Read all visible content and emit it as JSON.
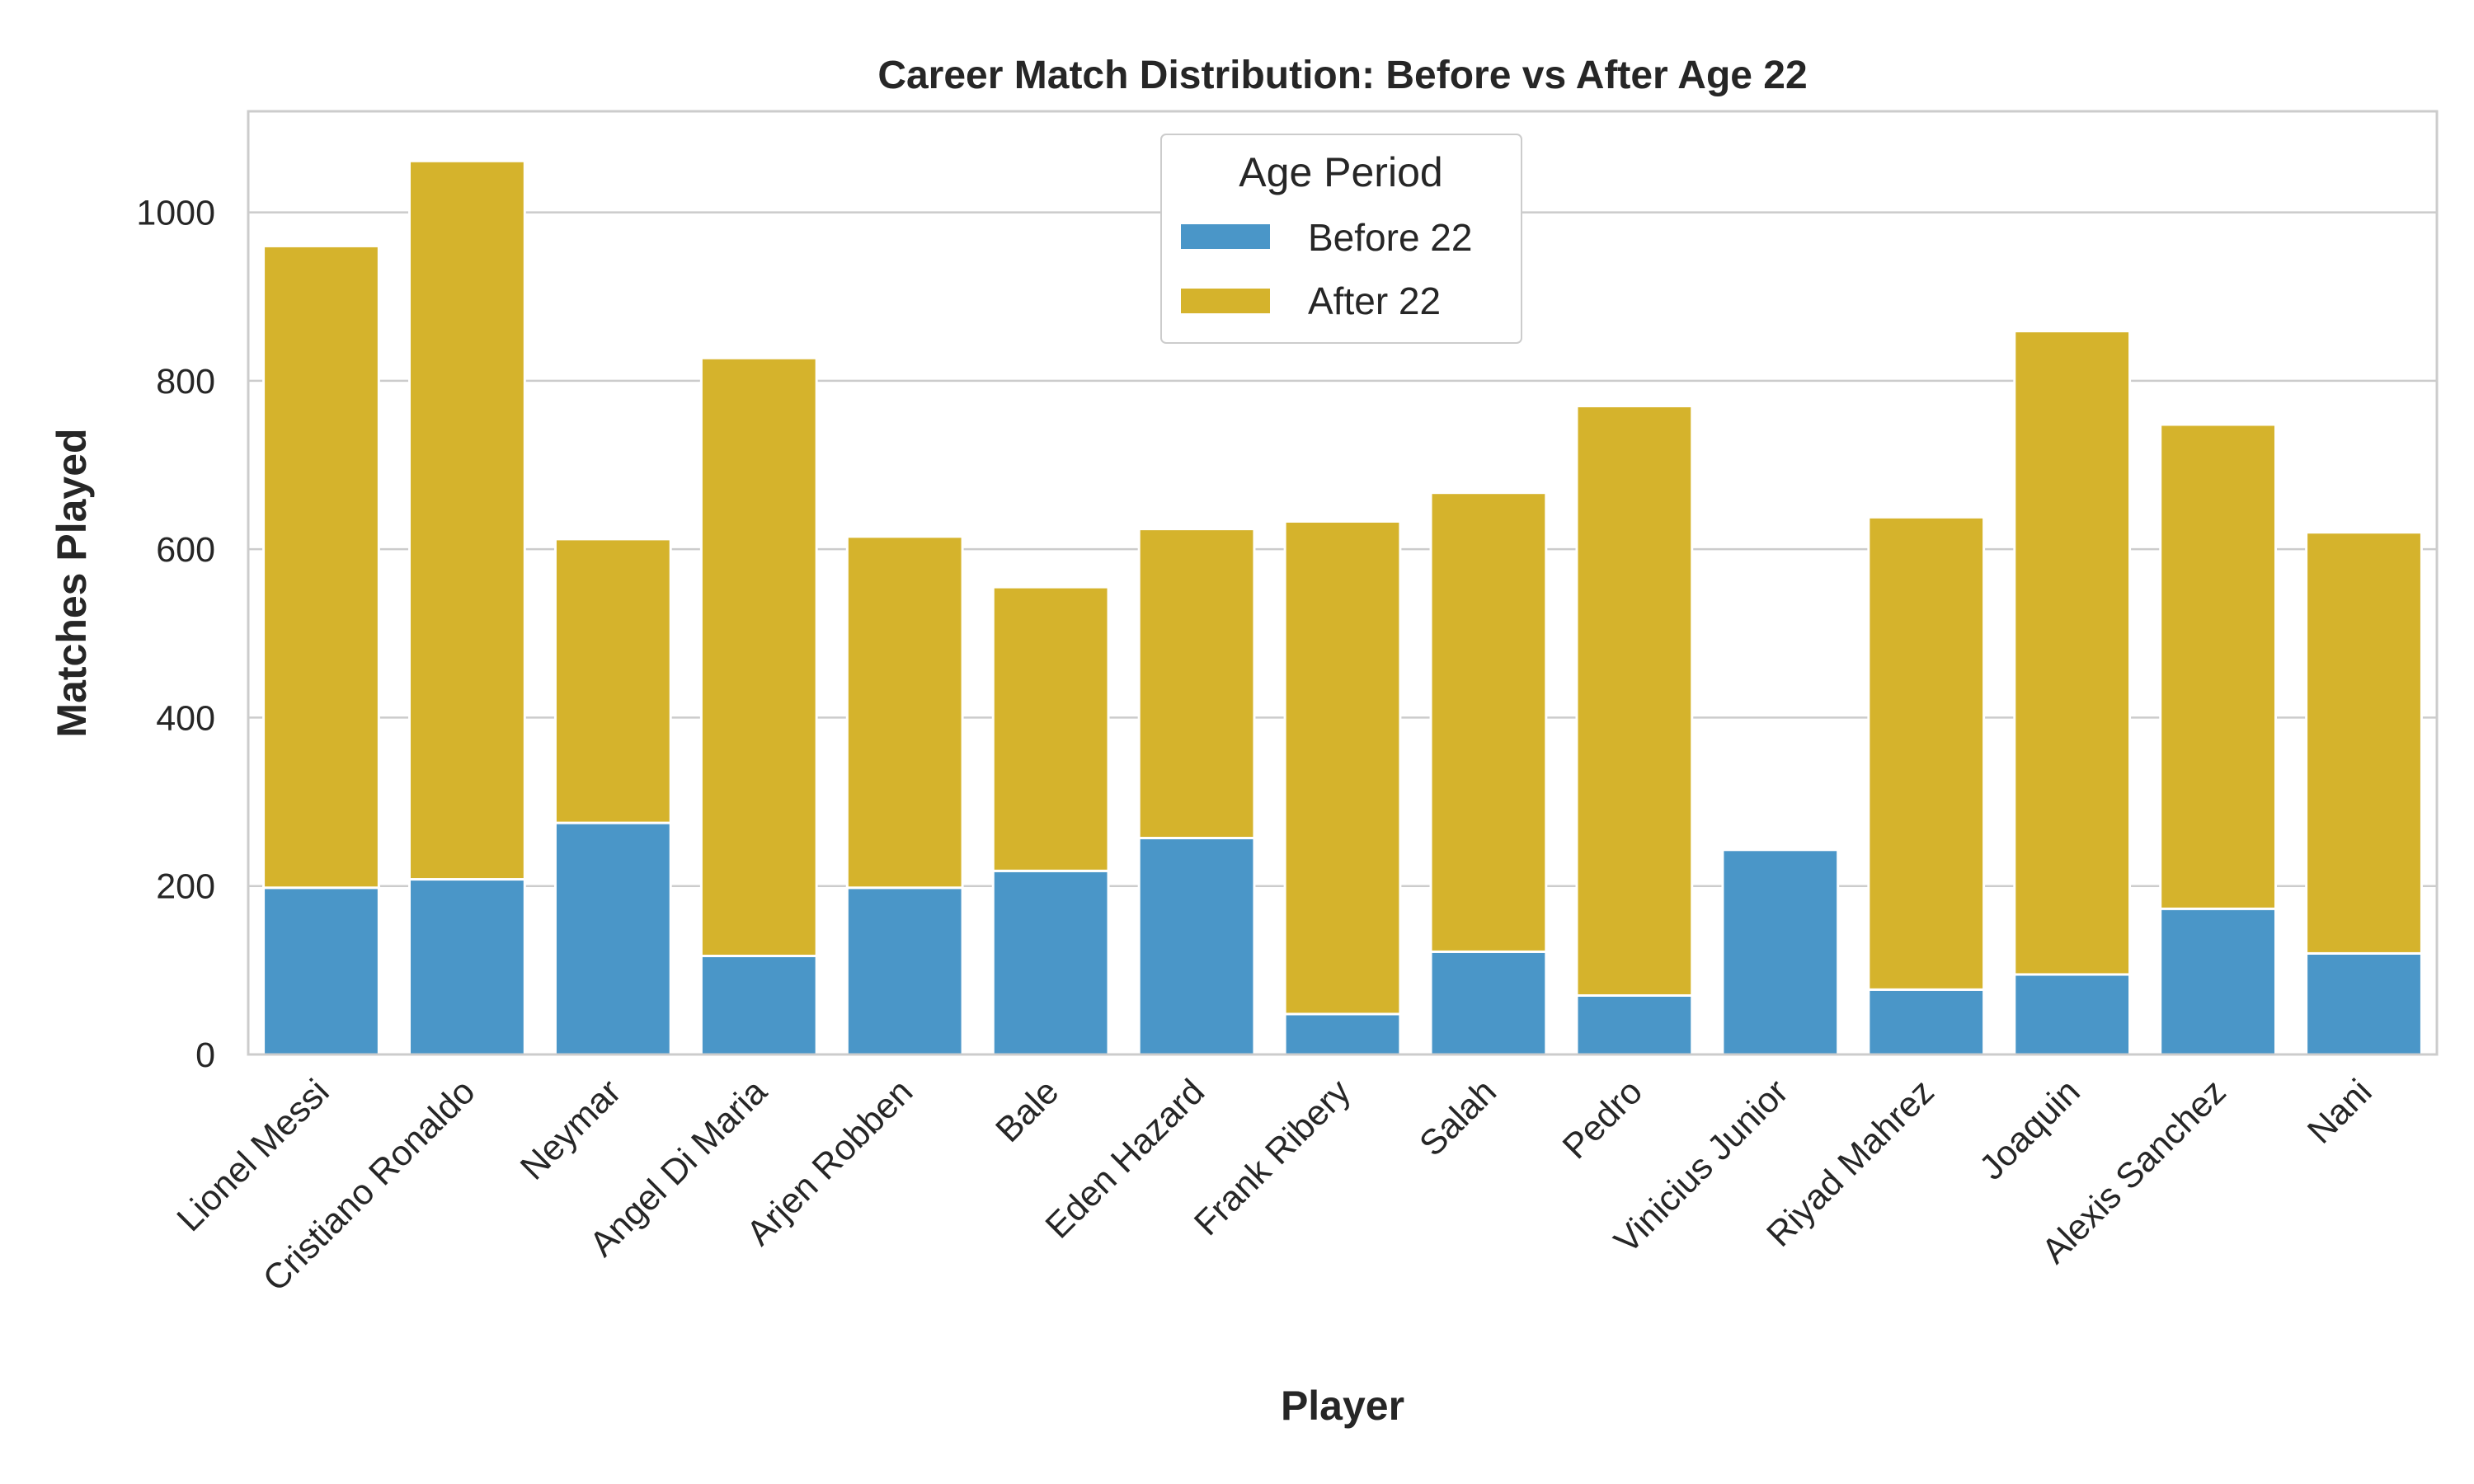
{
  "chart_data": {
    "type": "bar",
    "stacked": true,
    "title": "Career Match Distribution: Before vs After Age 22",
    "xlabel": "Player",
    "ylabel": "Matches Played",
    "ylim": [
      0,
      1120
    ],
    "yticks": [
      0,
      200,
      400,
      600,
      800,
      1000
    ],
    "grid": true,
    "legend": {
      "title": "Age Period",
      "placement": "top-center"
    },
    "categories": [
      "Lionel Messi",
      "Cristiano Ronaldo",
      "Neymar",
      "Angel Di Maria",
      "Arjen Robben",
      "Bale",
      "Eden Hazard",
      "Frank Ribery",
      "Salah",
      "Pedro",
      "Vinicius Junior",
      "Riyad Mahrez",
      "Joaquin",
      "Alexis Sanchez",
      "Nani"
    ],
    "series": [
      {
        "name": "Before 22",
        "color": "#4A96C8",
        "values": [
          198,
          208,
          275,
          117,
          198,
          218,
          257,
          48,
          122,
          70,
          243,
          77,
          95,
          173,
          120
        ]
      },
      {
        "name": "After 22",
        "color": "#D5B32C",
        "values": [
          762,
          853,
          337,
          710,
          417,
          337,
          367,
          585,
          545,
          700,
          0,
          561,
          764,
          575,
          500
        ]
      }
    ]
  }
}
